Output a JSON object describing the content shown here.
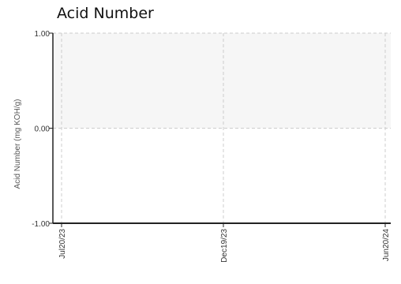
{
  "chart_data": {
    "type": "line",
    "title": "Acid Number",
    "xlabel": "",
    "ylabel": "Acid Number (mg KOH/g)",
    "x_tick_labels": [
      "Jul20/23",
      "Dec19/23",
      "Jun20/24"
    ],
    "y_tick_labels": [
      "1.00",
      "0.00",
      "-1.00"
    ],
    "ylim": [
      -1,
      1
    ],
    "grid": true,
    "shaded_band": [
      0,
      1
    ],
    "series": []
  }
}
